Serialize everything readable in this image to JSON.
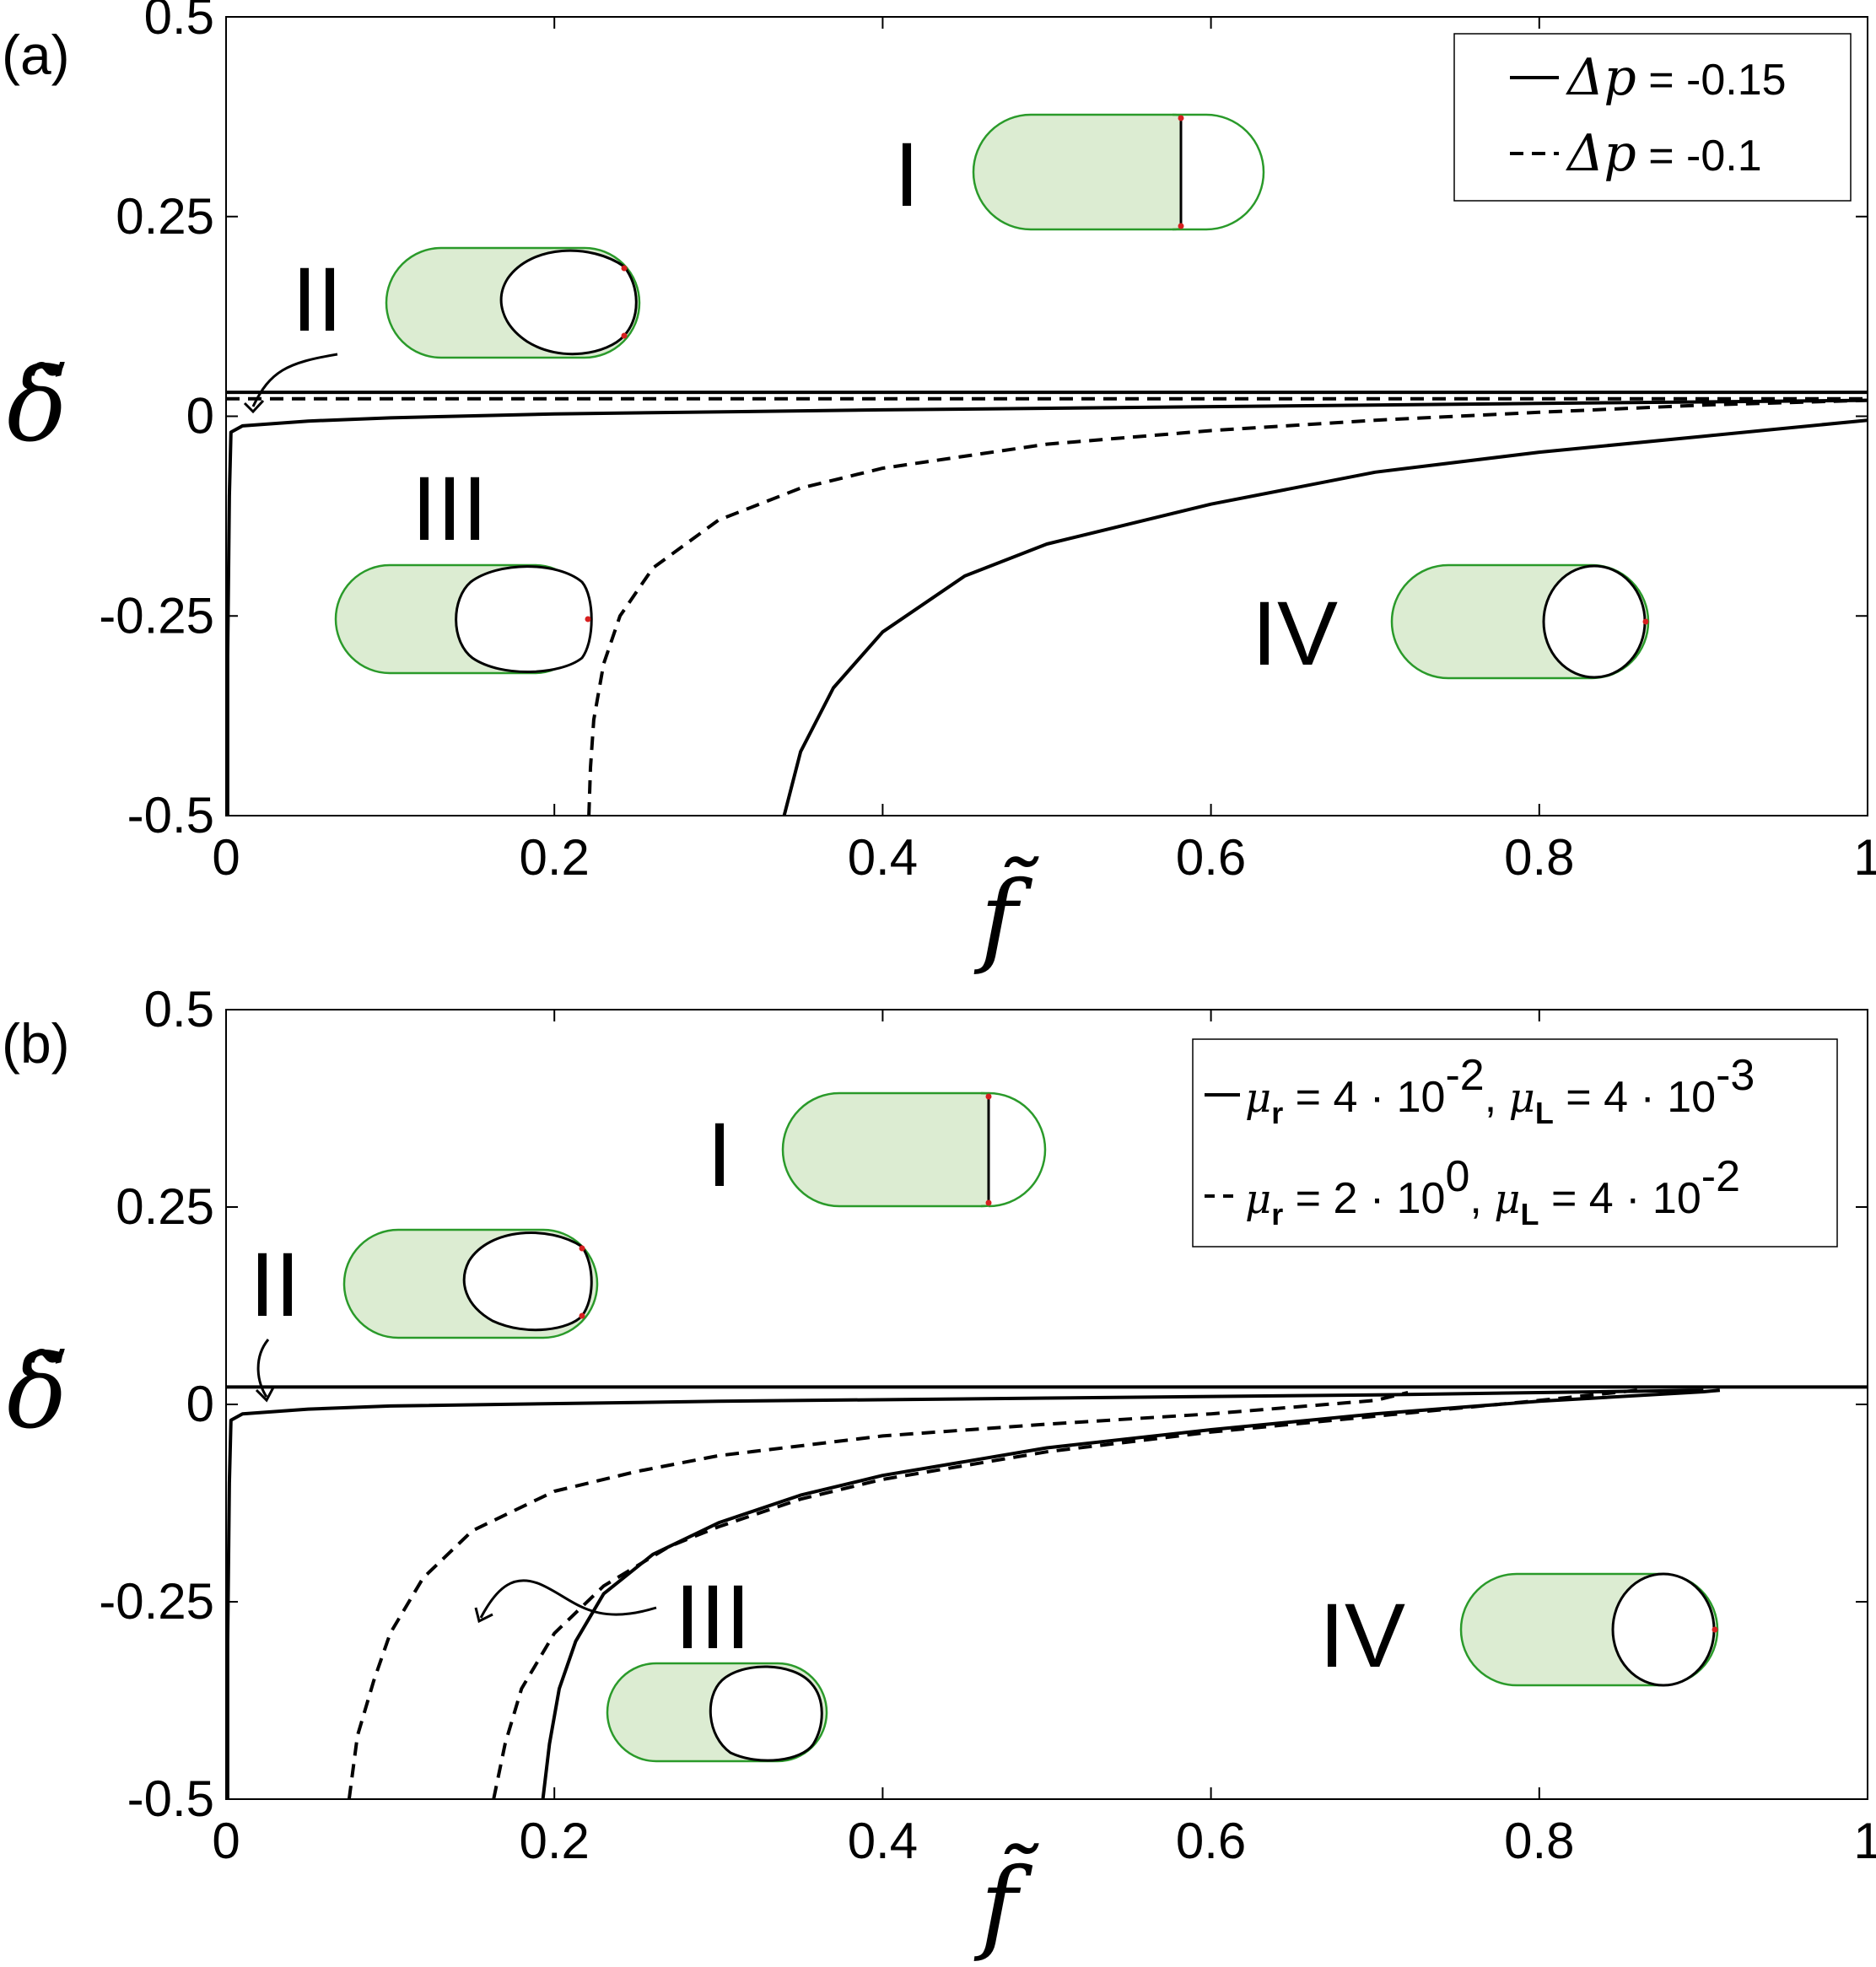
{
  "chart_data": [
    {
      "panel_label": "(a)",
      "type": "line",
      "xlabel": "f̃",
      "ylabel": "δ̃",
      "xlim": [
        0,
        1
      ],
      "ylim": [
        -0.5,
        0.5
      ],
      "xticks": [
        "0",
        "0.2",
        "0.4",
        "0.6",
        "0.8",
        "1"
      ],
      "yticks": [
        "0.5",
        "0.25",
        "0",
        "-0.25",
        "-0.5"
      ],
      "legend_position": "top-right",
      "legend": [
        {
          "symbol": "Δp",
          "value_text": " = -0.15",
          "style": "solid"
        },
        {
          "symbol": "Δp",
          "value_text": " = -0.1",
          "style": "dashed"
        }
      ],
      "regions": [
        "I",
        "II",
        "III",
        "IV"
      ],
      "series": [
        {
          "style": "solid",
          "points": [
            [
              0,
              0.03
            ],
            [
              1,
              0.03
            ]
          ]
        },
        {
          "style": "dashed",
          "points": [
            [
              0,
              0.022
            ],
            [
              1,
              0.022
            ]
          ]
        },
        {
          "style": "solid",
          "points": [
            [
              0.001,
              -0.5
            ],
            [
              0.001,
              -0.3
            ],
            [
              0.002,
              -0.1
            ],
            [
              0.003,
              -0.02
            ],
            [
              0.01,
              -0.012
            ],
            [
              0.05,
              -0.006
            ],
            [
              0.1,
              -0.002
            ],
            [
              0.2,
              0.003
            ],
            [
              0.4,
              0.008
            ],
            [
              0.6,
              0.012
            ],
            [
              0.8,
              0.016
            ],
            [
              1,
              0.02
            ]
          ]
        },
        {
          "style": "dashed",
          "points": [
            [
              0.221,
              -0.5
            ],
            [
              0.222,
              -0.44
            ],
            [
              0.224,
              -0.38
            ],
            [
              0.23,
              -0.31
            ],
            [
              0.24,
              -0.25
            ],
            [
              0.26,
              -0.19
            ],
            [
              0.3,
              -0.13
            ],
            [
              0.35,
              -0.09
            ],
            [
              0.4,
              -0.065
            ],
            [
              0.5,
              -0.035
            ],
            [
              0.6,
              -0.018
            ],
            [
              0.7,
              -0.005
            ],
            [
              0.8,
              0.005
            ],
            [
              0.9,
              0.014
            ],
            [
              1,
              0.02
            ]
          ]
        },
        {
          "style": "solid",
          "points": [
            [
              0.34,
              -0.5
            ],
            [
              0.35,
              -0.42
            ],
            [
              0.37,
              -0.34
            ],
            [
              0.4,
              -0.27
            ],
            [
              0.45,
              -0.2
            ],
            [
              0.5,
              -0.16
            ],
            [
              0.6,
              -0.11
            ],
            [
              0.7,
              -0.07
            ],
            [
              0.8,
              -0.045
            ],
            [
              0.9,
              -0.025
            ],
            [
              1,
              -0.005
            ]
          ]
        }
      ]
    },
    {
      "panel_label": "(b)",
      "type": "line",
      "xlabel": "f̃",
      "ylabel": "δ̃",
      "xlim": [
        0,
        1
      ],
      "ylim": [
        -0.5,
        0.5
      ],
      "xticks": [
        "0",
        "0.2",
        "0.4",
        "0.6",
        "0.8",
        "1"
      ],
      "yticks": [
        "0.5",
        "0.25",
        "0",
        "-0.25",
        "-0.5"
      ],
      "legend_position": "top-right",
      "legend": [
        {
          "style": "solid",
          "mu_r": "4 · 10",
          "mu_r_exp": "-2",
          "mu_L": "4 · 10",
          "mu_L_exp": "-3"
        },
        {
          "style": "dashed",
          "mu_r": "2 · 10",
          "mu_r_exp": "0",
          "mu_L": "4 · 10",
          "mu_L_exp": "-2"
        }
      ],
      "regions": [
        "I",
        "II",
        "III",
        "IV"
      ],
      "series": [
        {
          "style": "solid",
          "points": [
            [
              0,
              0.022
            ],
            [
              1,
              0.022
            ]
          ]
        },
        {
          "style": "solid",
          "points": [
            [
              0.001,
              -0.5
            ],
            [
              0.001,
              -0.3
            ],
            [
              0.002,
              -0.1
            ],
            [
              0.003,
              -0.02
            ],
            [
              0.01,
              -0.012
            ],
            [
              0.05,
              -0.006
            ],
            [
              0.1,
              -0.002
            ],
            [
              0.3,
              0.004
            ],
            [
              0.5,
              0.008
            ],
            [
              0.7,
              0.012
            ],
            [
              0.9,
              0.018
            ]
          ]
        },
        {
          "style": "dashed",
          "points": [
            [
              0.075,
              -0.5
            ],
            [
              0.08,
              -0.42
            ],
            [
              0.09,
              -0.35
            ],
            [
              0.1,
              -0.29
            ],
            [
              0.12,
              -0.22
            ],
            [
              0.15,
              -0.16
            ],
            [
              0.2,
              -0.11
            ],
            [
              0.25,
              -0.085
            ],
            [
              0.3,
              -0.065
            ],
            [
              0.4,
              -0.04
            ],
            [
              0.5,
              -0.025
            ],
            [
              0.6,
              -0.012
            ],
            [
              0.7,
              0.005
            ],
            [
              0.72,
              0.015
            ]
          ]
        },
        {
          "style": "dashed",
          "points": [
            [
              0.163,
              -0.5
            ],
            [
              0.17,
              -0.43
            ],
            [
              0.18,
              -0.36
            ],
            [
              0.2,
              -0.29
            ],
            [
              0.23,
              -0.23
            ],
            [
              0.27,
              -0.18
            ],
            [
              0.3,
              -0.155
            ],
            [
              0.35,
              -0.12
            ],
            [
              0.4,
              -0.095
            ],
            [
              0.5,
              -0.06
            ],
            [
              0.6,
              -0.035
            ],
            [
              0.7,
              -0.015
            ],
            [
              0.8,
              0.005
            ],
            [
              0.86,
              0.018
            ]
          ]
        },
        {
          "style": "solid",
          "points": [
            [
              0.193,
              -0.5
            ],
            [
              0.197,
              -0.43
            ],
            [
              0.203,
              -0.36
            ],
            [
              0.213,
              -0.3
            ],
            [
              0.23,
              -0.24
            ],
            [
              0.26,
              -0.19
            ],
            [
              0.3,
              -0.15
            ],
            [
              0.35,
              -0.115
            ],
            [
              0.4,
              -0.09
            ],
            [
              0.5,
              -0.055
            ],
            [
              0.6,
              -0.032
            ],
            [
              0.7,
              -0.012
            ],
            [
              0.8,
              0.004
            ],
            [
              0.9,
              0.016
            ],
            [
              0.91,
              0.018
            ]
          ]
        }
      ]
    }
  ]
}
